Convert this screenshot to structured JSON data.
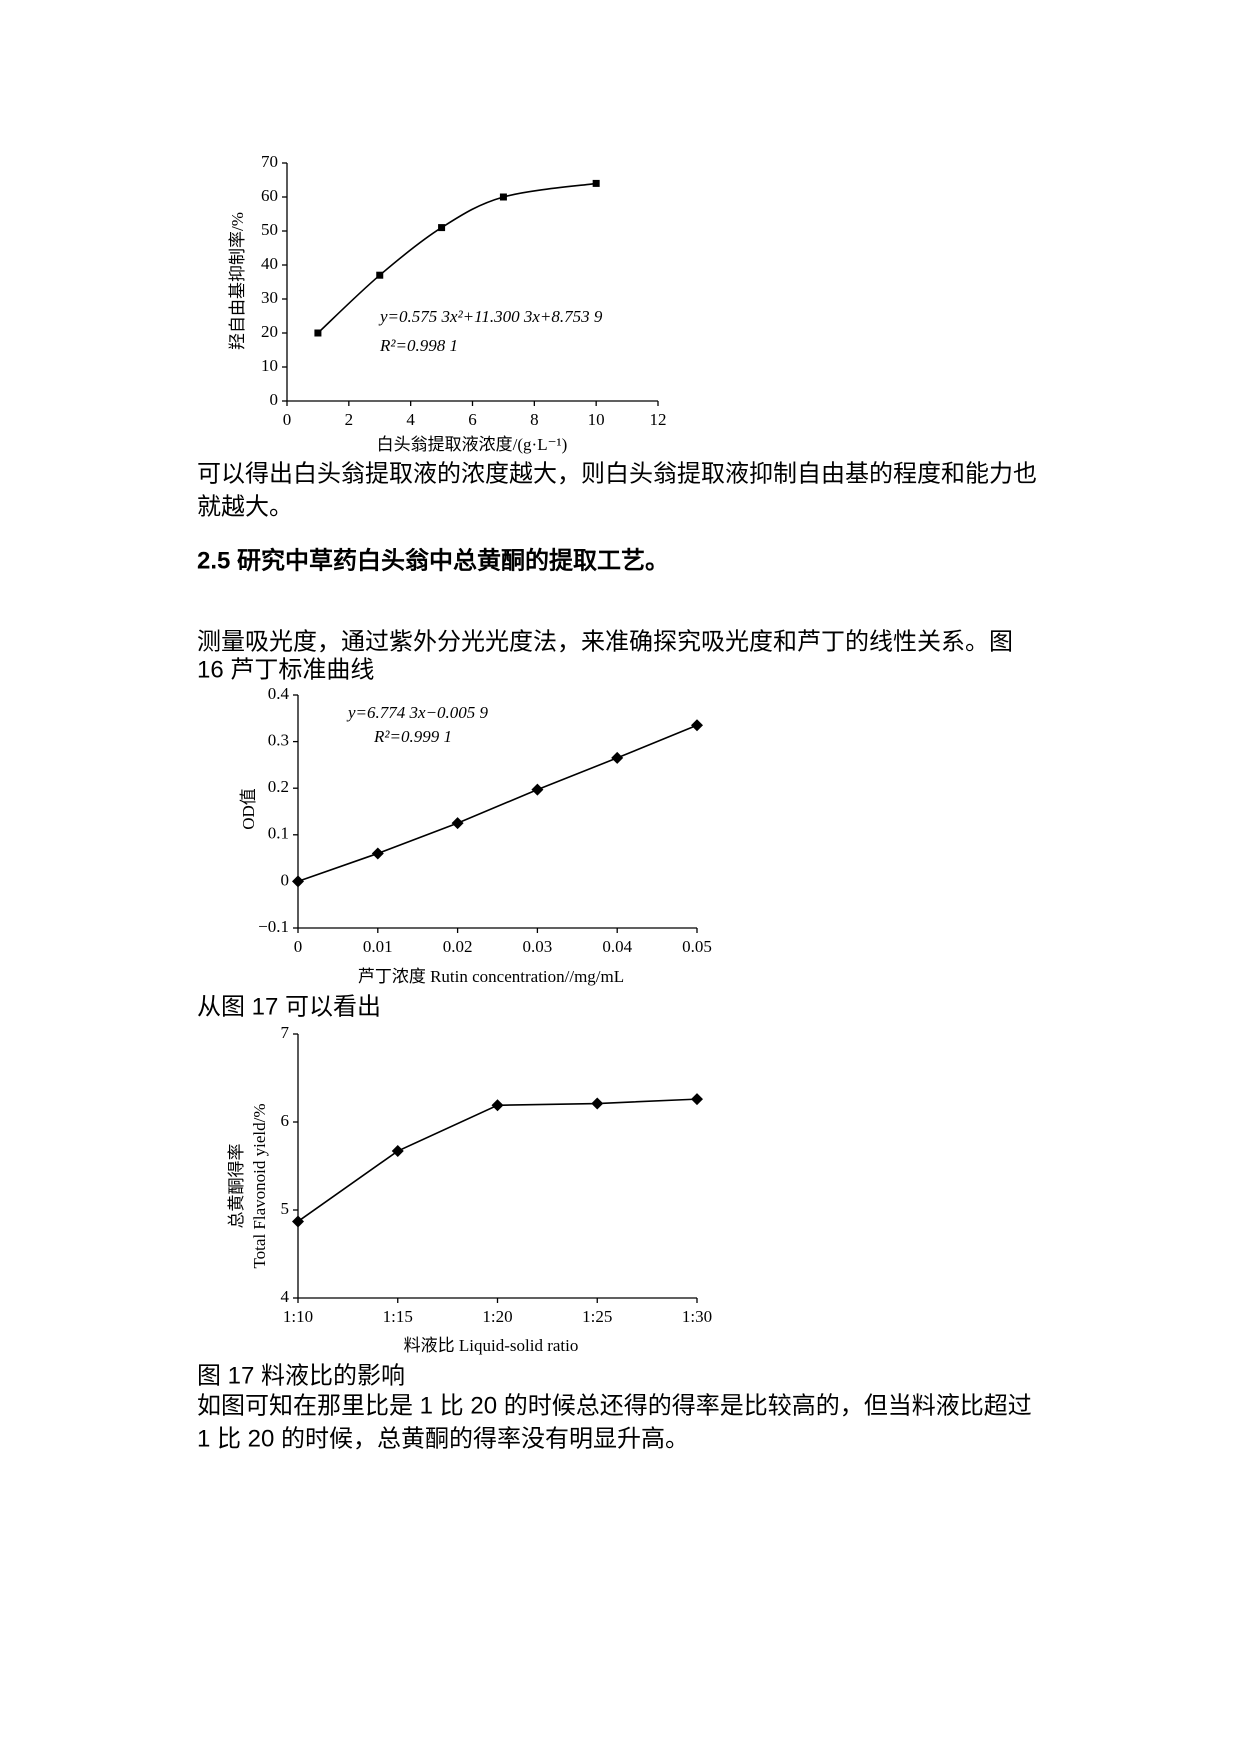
{
  "paragraph_1": {
    "lines": [
      "可以得出白头翁提取液的浓度越大，则白头翁提取液抑制自由基的程度和能力也",
      "就越大。"
    ]
  },
  "heading": "2.5 研究中草药白头翁中总黄酮的提取工艺。",
  "paragraph_2": {
    "lines": [
      "测量吸光度，通过紫外分光光度法，来准确探究吸光度和芦丁的线性关系。图",
      "16 芦丁标准曲线"
    ]
  },
  "paragraph_3": "从图 17 可以看出",
  "figure_17_caption": "图 17 料液比的影响",
  "paragraph_4": {
    "lines": [
      "如图可知在那里比是 1 比 20 的时候总还得的得率是比较高的，但当料液比超过",
      "1 比 20 的时候，总黄酮的得率没有明显升高。"
    ]
  },
  "chart_data": [
    {
      "type": "line",
      "x": [
        1,
        3,
        5,
        7,
        10
      ],
      "values": [
        20,
        37,
        51,
        60,
        64
      ],
      "xlim": [
        0,
        12
      ],
      "ylim": [
        0,
        70
      ],
      "xticks": [
        0,
        2,
        4,
        6,
        8,
        10,
        12
      ],
      "yticks": [
        0,
        10,
        20,
        30,
        40,
        50,
        60,
        70
      ],
      "x_label": "白头翁提取液浓度/(g·L⁻¹)",
      "y_label": "羟自由基抑制率/%",
      "annotations": [
        "y=0.575 3x²+11.300 3x+8.753 9",
        "R²=0.998 1"
      ],
      "marker": "square",
      "smooth": true,
      "color": "#000000"
    },
    {
      "type": "line",
      "x": [
        0,
        0.01,
        0.02,
        0.03,
        0.04,
        0.05
      ],
      "values": [
        0,
        0.06,
        0.125,
        0.197,
        0.265,
        0.335
      ],
      "xlim": [
        0,
        0.05
      ],
      "ylim": [
        -0.1,
        0.4
      ],
      "xticks": [
        0,
        0.01,
        0.02,
        0.03,
        0.04,
        0.05
      ],
      "yticks": [
        {
          "value": -0.1,
          "label": "−0.1"
        },
        0,
        0.1,
        0.2,
        0.3,
        0.4
      ],
      "x_label": "芦丁浓度 Rutin concentration//mg/mL",
      "y_label": "OD值",
      "annotations": [
        "y=6.774 3x−0.005 9",
        "R²=0.999 1"
      ],
      "marker": "diamond",
      "smooth": false,
      "color": "#000000"
    },
    {
      "type": "line",
      "categories": [
        "1:10",
        "1:15",
        "1:20",
        "1:25",
        "1:30"
      ],
      "values": [
        4.87,
        5.67,
        6.19,
        6.21,
        6.26
      ],
      "ylim": [
        4,
        7
      ],
      "yticks": [
        4,
        5,
        6,
        7
      ],
      "x_label": "料液比 Liquid-solid ratio",
      "y_label": [
        "总黄酮得率",
        "Total Flavonoid yield/%"
      ],
      "marker": "diamond",
      "smooth": false,
      "color": "#000000"
    }
  ]
}
